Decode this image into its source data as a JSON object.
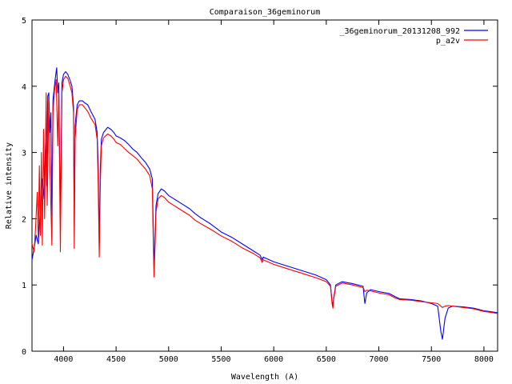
{
  "chart_data": {
    "type": "line",
    "title": "Comparaison_36geminorum",
    "xlabel": "Wavelength (A)",
    "ylabel": "Relative intensity",
    "xlim": [
      3700,
      8130
    ],
    "ylim": [
      0,
      5
    ],
    "xticks": [
      4000,
      4500,
      5000,
      5500,
      6000,
      6500,
      7000,
      7500,
      8000
    ],
    "yticks": [
      0,
      1,
      2,
      3,
      4,
      5
    ],
    "grid": false,
    "legend_position": "top-right",
    "series": [
      {
        "name": "_36geminorum_20131208_992",
        "color": "#0000ff",
        "points": [
          [
            3700,
            1.38
          ],
          [
            3720,
            1.55
          ],
          [
            3740,
            1.75
          ],
          [
            3760,
            1.62
          ],
          [
            3780,
            2.15
          ],
          [
            3800,
            2.6
          ],
          [
            3815,
            2.3
          ],
          [
            3830,
            3.2
          ],
          [
            3840,
            2.5
          ],
          [
            3850,
            3.85
          ],
          [
            3860,
            3.9
          ],
          [
            3870,
            3.3
          ],
          [
            3880,
            3.6
          ],
          [
            3889,
            2.05
          ],
          [
            3900,
            3.8
          ],
          [
            3920,
            4.1
          ],
          [
            3935,
            4.28
          ],
          [
            3945,
            3.9
          ],
          [
            3955,
            4.05
          ],
          [
            3970,
            1.95
          ],
          [
            3985,
            4.05
          ],
          [
            4000,
            4.18
          ],
          [
            4020,
            4.22
          ],
          [
            4040,
            4.18
          ],
          [
            4060,
            4.1
          ],
          [
            4080,
            4.0
          ],
          [
            4095,
            3.7
          ],
          [
            4102,
            1.9
          ],
          [
            4110,
            3.4
          ],
          [
            4130,
            3.72
          ],
          [
            4150,
            3.78
          ],
          [
            4180,
            3.78
          ],
          [
            4200,
            3.75
          ],
          [
            4230,
            3.72
          ],
          [
            4260,
            3.62
          ],
          [
            4300,
            3.5
          ],
          [
            4320,
            3.3
          ],
          [
            4330,
            2.8
          ],
          [
            4340,
            1.6
          ],
          [
            4350,
            2.75
          ],
          [
            4360,
            3.2
          ],
          [
            4380,
            3.3
          ],
          [
            4420,
            3.38
          ],
          [
            4450,
            3.35
          ],
          [
            4480,
            3.3
          ],
          [
            4500,
            3.25
          ],
          [
            4540,
            3.22
          ],
          [
            4580,
            3.18
          ],
          [
            4620,
            3.12
          ],
          [
            4660,
            3.05
          ],
          [
            4700,
            3.0
          ],
          [
            4740,
            2.92
          ],
          [
            4780,
            2.85
          ],
          [
            4820,
            2.75
          ],
          [
            4845,
            2.6
          ],
          [
            4855,
            1.75
          ],
          [
            4861,
            1.25
          ],
          [
            4870,
            1.7
          ],
          [
            4880,
            2.2
          ],
          [
            4900,
            2.38
          ],
          [
            4930,
            2.45
          ],
          [
            4960,
            2.42
          ],
          [
            5000,
            2.35
          ],
          [
            5050,
            2.3
          ],
          [
            5100,
            2.25
          ],
          [
            5150,
            2.2
          ],
          [
            5200,
            2.15
          ],
          [
            5250,
            2.08
          ],
          [
            5300,
            2.02
          ],
          [
            5400,
            1.92
          ],
          [
            5500,
            1.8
          ],
          [
            5600,
            1.72
          ],
          [
            5700,
            1.62
          ],
          [
            5800,
            1.52
          ],
          [
            5870,
            1.45
          ],
          [
            5890,
            1.38
          ],
          [
            5900,
            1.42
          ],
          [
            6000,
            1.35
          ],
          [
            6100,
            1.3
          ],
          [
            6200,
            1.25
          ],
          [
            6300,
            1.2
          ],
          [
            6400,
            1.15
          ],
          [
            6500,
            1.08
          ],
          [
            6540,
            1.0
          ],
          [
            6555,
            0.75
          ],
          [
            6563,
            0.68
          ],
          [
            6570,
            0.8
          ],
          [
            6590,
            1.0
          ],
          [
            6650,
            1.05
          ],
          [
            6750,
            1.02
          ],
          [
            6850,
            0.98
          ],
          [
            6867,
            0.72
          ],
          [
            6885,
            0.88
          ],
          [
            6920,
            0.93
          ],
          [
            7000,
            0.9
          ],
          [
            7100,
            0.87
          ],
          [
            7160,
            0.82
          ],
          [
            7200,
            0.79
          ],
          [
            7300,
            0.78
          ],
          [
            7400,
            0.76
          ],
          [
            7500,
            0.72
          ],
          [
            7560,
            0.68
          ],
          [
            7590,
            0.3
          ],
          [
            7605,
            0.18
          ],
          [
            7630,
            0.5
          ],
          [
            7660,
            0.65
          ],
          [
            7700,
            0.68
          ],
          [
            7800,
            0.67
          ],
          [
            7900,
            0.65
          ],
          [
            7950,
            0.63
          ],
          [
            8000,
            0.61
          ],
          [
            8050,
            0.6
          ],
          [
            8130,
            0.58
          ]
        ]
      },
      {
        "name": "p_a2v",
        "color": "#ff0000",
        "points": [
          [
            3700,
            1.62
          ],
          [
            3720,
            1.5
          ],
          [
            3735,
            1.9
          ],
          [
            3750,
            2.4
          ],
          [
            3760,
            1.7
          ],
          [
            3770,
            2.8
          ],
          [
            3780,
            1.75
          ],
          [
            3790,
            3.0
          ],
          [
            3798,
            1.6
          ],
          [
            3810,
            3.35
          ],
          [
            3820,
            2.0
          ],
          [
            3835,
            3.9
          ],
          [
            3845,
            2.2
          ],
          [
            3860,
            3.8
          ],
          [
            3870,
            2.8
          ],
          [
            3889,
            1.6
          ],
          [
            3900,
            3.6
          ],
          [
            3915,
            3.95
          ],
          [
            3930,
            4.1
          ],
          [
            3945,
            3.1
          ],
          [
            3955,
            3.95
          ],
          [
            3970,
            1.5
          ],
          [
            3985,
            3.9
          ],
          [
            4000,
            4.1
          ],
          [
            4020,
            4.15
          ],
          [
            4040,
            4.12
          ],
          [
            4060,
            4.02
          ],
          [
            4080,
            3.9
          ],
          [
            4095,
            3.6
          ],
          [
            4102,
            1.55
          ],
          [
            4110,
            3.2
          ],
          [
            4130,
            3.65
          ],
          [
            4150,
            3.72
          ],
          [
            4180,
            3.72
          ],
          [
            4200,
            3.68
          ],
          [
            4230,
            3.62
          ],
          [
            4260,
            3.52
          ],
          [
            4300,
            3.42
          ],
          [
            4320,
            3.2
          ],
          [
            4330,
            2.5
          ],
          [
            4340,
            1.42
          ],
          [
            4350,
            2.5
          ],
          [
            4360,
            3.1
          ],
          [
            4380,
            3.22
          ],
          [
            4420,
            3.28
          ],
          [
            4450,
            3.25
          ],
          [
            4480,
            3.2
          ],
          [
            4500,
            3.15
          ],
          [
            4540,
            3.12
          ],
          [
            4580,
            3.06
          ],
          [
            4620,
            3.0
          ],
          [
            4660,
            2.95
          ],
          [
            4700,
            2.9
          ],
          [
            4740,
            2.82
          ],
          [
            4780,
            2.75
          ],
          [
            4820,
            2.65
          ],
          [
            4845,
            2.45
          ],
          [
            4855,
            1.55
          ],
          [
            4861,
            1.12
          ],
          [
            4870,
            1.55
          ],
          [
            4880,
            2.1
          ],
          [
            4900,
            2.3
          ],
          [
            4930,
            2.35
          ],
          [
            4960,
            2.32
          ],
          [
            5000,
            2.25
          ],
          [
            5050,
            2.2
          ],
          [
            5100,
            2.15
          ],
          [
            5150,
            2.1
          ],
          [
            5200,
            2.05
          ],
          [
            5250,
            1.98
          ],
          [
            5300,
            1.93
          ],
          [
            5400,
            1.84
          ],
          [
            5500,
            1.74
          ],
          [
            5600,
            1.66
          ],
          [
            5700,
            1.56
          ],
          [
            5800,
            1.48
          ],
          [
            5870,
            1.41
          ],
          [
            5890,
            1.34
          ],
          [
            5900,
            1.38
          ],
          [
            6000,
            1.31
          ],
          [
            6100,
            1.26
          ],
          [
            6200,
            1.21
          ],
          [
            6300,
            1.16
          ],
          [
            6400,
            1.11
          ],
          [
            6500,
            1.05
          ],
          [
            6540,
            0.98
          ],
          [
            6555,
            0.72
          ],
          [
            6563,
            0.65
          ],
          [
            6570,
            0.78
          ],
          [
            6590,
            0.98
          ],
          [
            6650,
            1.03
          ],
          [
            6750,
            1.0
          ],
          [
            6850,
            0.96
          ],
          [
            6867,
            0.9
          ],
          [
            6885,
            0.92
          ],
          [
            6920,
            0.91
          ],
          [
            7000,
            0.88
          ],
          [
            7100,
            0.85
          ],
          [
            7160,
            0.8
          ],
          [
            7200,
            0.78
          ],
          [
            7300,
            0.77
          ],
          [
            7400,
            0.75
          ],
          [
            7500,
            0.73
          ],
          [
            7560,
            0.72
          ],
          [
            7590,
            0.68
          ],
          [
            7605,
            0.66
          ],
          [
            7630,
            0.68
          ],
          [
            7660,
            0.69
          ],
          [
            7700,
            0.68
          ],
          [
            7800,
            0.66
          ],
          [
            7900,
            0.64
          ],
          [
            7950,
            0.62
          ],
          [
            8000,
            0.6
          ],
          [
            8050,
            0.59
          ],
          [
            8130,
            0.57
          ]
        ]
      }
    ]
  }
}
